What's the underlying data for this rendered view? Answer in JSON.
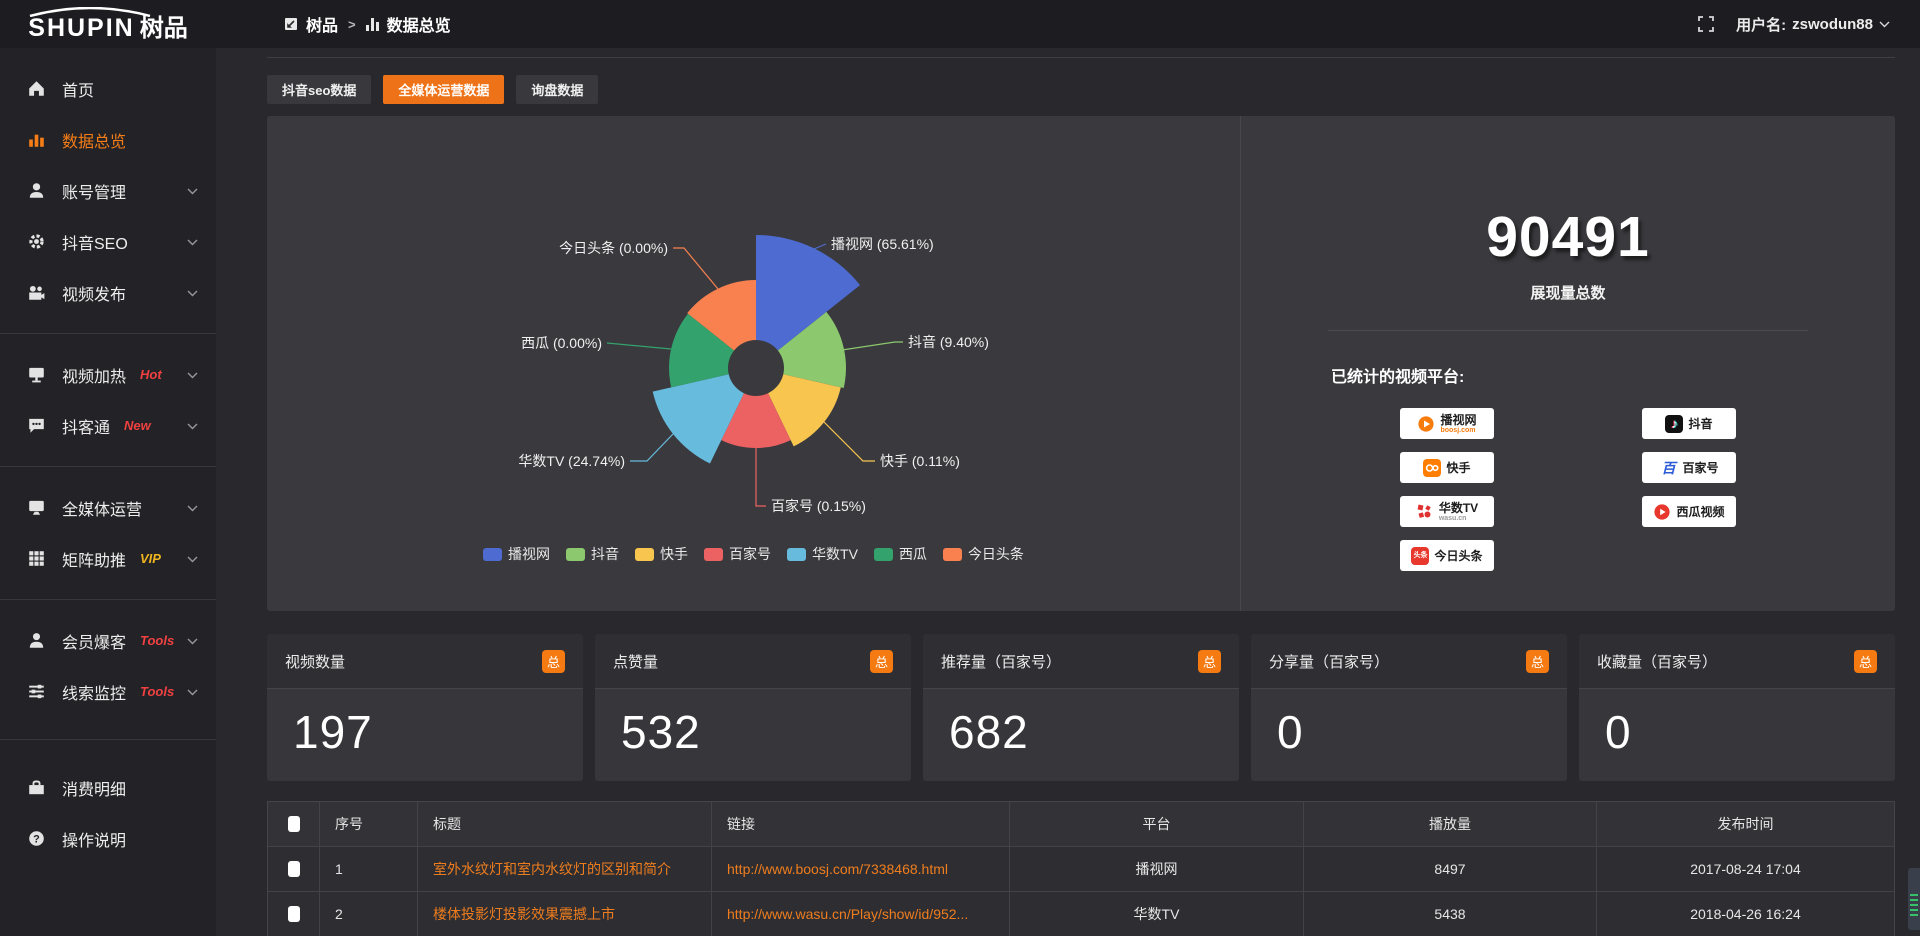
{
  "topbar": {
    "logo_text": "SHUPIN",
    "logo_suffix": "树品",
    "breadcrumb": {
      "root": "树品",
      "separator": ">",
      "current": "数据总览"
    },
    "username_prefix": "用户名:",
    "username": "zswodun88"
  },
  "sidebar": {
    "items": [
      {
        "label": "首页",
        "icon": "home"
      },
      {
        "label": "数据总览",
        "icon": "chart",
        "active": true
      },
      {
        "label": "账号管理",
        "icon": "user",
        "chevron": true
      },
      {
        "label": "抖音SEO",
        "icon": "gear",
        "chevron": true
      },
      {
        "label": "视频发布",
        "icon": "video",
        "chevron": true
      },
      {
        "divider": true
      },
      {
        "label": "视频加热",
        "icon": "screen",
        "badge": "Hot",
        "badge_color": "#f04040",
        "chevron": true
      },
      {
        "label": "抖客通",
        "icon": "chat",
        "badge": "New",
        "badge_color": "#f04040",
        "chevron": true
      },
      {
        "divider": true
      },
      {
        "label": "全媒体运营",
        "icon": "monitor",
        "chevron": true
      },
      {
        "label": "矩阵助推",
        "icon": "grid",
        "badge": "VIP",
        "badge_color": "#efb41e",
        "chevron": true
      },
      {
        "divider": true
      },
      {
        "label": "会员爆客",
        "icon": "person",
        "badge": "Tools",
        "badge_color": "#f04040",
        "chevron": true
      },
      {
        "label": "线索监控",
        "icon": "sliders",
        "badge": "Tools",
        "badge_color": "#f04040",
        "chevron": true
      },
      {
        "divider": true,
        "big": true
      },
      {
        "label": "消费明细",
        "icon": "receipt"
      },
      {
        "label": "操作说明",
        "icon": "question"
      }
    ]
  },
  "tabs": [
    {
      "label": "抖音seo数据",
      "active": false
    },
    {
      "label": "全媒体运营数据",
      "active": true
    },
    {
      "label": "询盘数据",
      "active": false
    }
  ],
  "chart_data": {
    "type": "pie",
    "variant": "nightingale-rose",
    "categories": [
      "播视网",
      "抖音",
      "快手",
      "百家号",
      "华数TV",
      "西瓜",
      "今日头条"
    ],
    "values": [
      65.61,
      9.4,
      0.11,
      0.15,
      24.74,
      0.0,
      0.0
    ],
    "unit": "%",
    "labels": [
      "播视网 (65.61%)",
      "抖音 (9.40%)",
      "快手 (0.11%)",
      "百家号 (0.15%)",
      "华数TV (24.74%)",
      "西瓜 (0.00%)",
      "今日头条 (0.00%)"
    ],
    "colors": [
      "#4d6bd0",
      "#8cc96e",
      "#f8c64f",
      "#ec6262",
      "#67bbdd",
      "#34a26c",
      "#f8814f"
    ],
    "legend_position": "bottom",
    "legend": [
      "播视网",
      "抖音",
      "快手",
      "百家号",
      "华数TV",
      "西瓜",
      "今日头条"
    ]
  },
  "summary": {
    "total_value": "90491",
    "total_label": "展现量总数",
    "platforms_label": "已统计的视频平台:",
    "platforms": [
      {
        "name": "播视网",
        "sub": "boosj.com"
      },
      {
        "name": "快手"
      },
      {
        "name": "华数TV",
        "sub": "wasu.cn"
      },
      {
        "name": "今日头条"
      },
      {
        "name": "抖音"
      },
      {
        "name": "百家号"
      },
      {
        "name": "西瓜视频"
      }
    ]
  },
  "stat_cards": [
    {
      "label": "视频数量",
      "badge": "总",
      "value": "197"
    },
    {
      "label": "点赞量",
      "badge": "总",
      "value": "532"
    },
    {
      "label": "推荐量（百家号）",
      "badge": "总",
      "value": "682"
    },
    {
      "label": "分享量（百家号）",
      "badge": "总",
      "value": "0"
    },
    {
      "label": "收藏量（百家号）",
      "badge": "总",
      "value": "0"
    }
  ],
  "table": {
    "columns": [
      "序号",
      "标题",
      "链接",
      "平台",
      "播放量",
      "发布时间"
    ],
    "rows": [
      {
        "no": "1",
        "title": "室外水纹灯和室内水纹灯的区别和简介",
        "link": "http://www.boosj.com/7338468.html",
        "platform": "播视网",
        "plays": "8497",
        "time": "2017-08-24 17:04"
      },
      {
        "no": "2",
        "title": "楼体投影灯投影效果震撼上市",
        "link": "http://www.wasu.cn/Play/show/id/952...",
        "platform": "华数TV",
        "plays": "5438",
        "time": "2018-04-26 16:24"
      }
    ]
  },
  "colors": {
    "accent": "#ee7318",
    "link": "#ef7d1e",
    "hot_badge": "#f04040",
    "vip_badge": "#efb41e"
  }
}
